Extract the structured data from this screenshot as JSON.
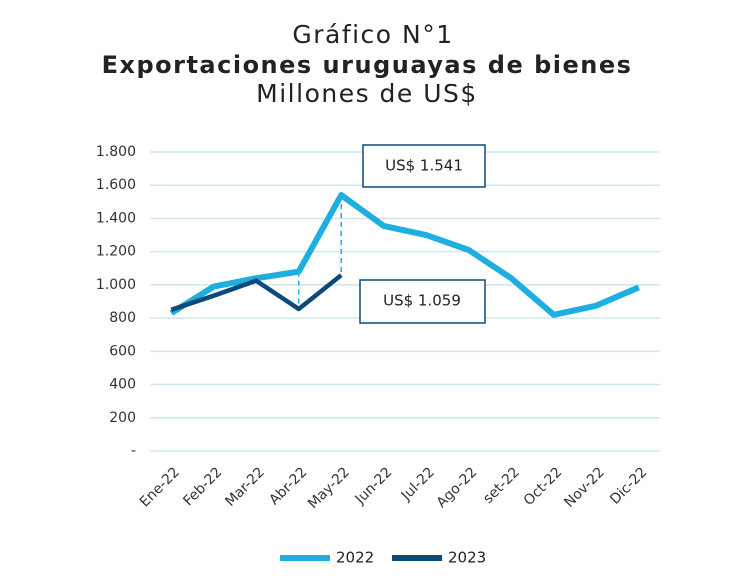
{
  "chart_data": {
    "type": "line",
    "title": "Gráfico N°1",
    "subtitle": "Exportaciones uruguayas de bienes",
    "y_label": "Millones de US$",
    "categories": [
      "Ene-22",
      "Feb-22",
      "Mar-22",
      "Abr-22",
      "May-22",
      "Jun-22",
      "Jul-22",
      "Ago-22",
      "set-22",
      "Oct-22",
      "Nov-22",
      "Dic-22"
    ],
    "series": [
      {
        "name": "2022",
        "color": "#1eaee0",
        "values": [
          830,
          990,
          1040,
          1080,
          1541,
          1355,
          1300,
          1210,
          1040,
          820,
          875,
          985
        ]
      },
      {
        "name": "2023",
        "color": "#0d4a78",
        "values": [
          850,
          935,
          1025,
          855,
          1059,
          null,
          null,
          null,
          null,
          null,
          null,
          null
        ]
      }
    ],
    "annotations": [
      "US$ 1.541",
      "US$ 1.059"
    ],
    "ylim": [
      0,
      1800
    ],
    "yticks": [
      {
        "value": 0,
        "label": "-"
      },
      200,
      400,
      600,
      800,
      {
        "value": 1000,
        "label": "1.000"
      },
      {
        "value": 1200,
        "label": "1.200"
      },
      {
        "value": 1400,
        "label": "1.400"
      },
      {
        "value": 1600,
        "label": "1.600"
      },
      {
        "value": 1800,
        "label": "1.800"
      }
    ],
    "grid": true,
    "legend": "bottom"
  }
}
